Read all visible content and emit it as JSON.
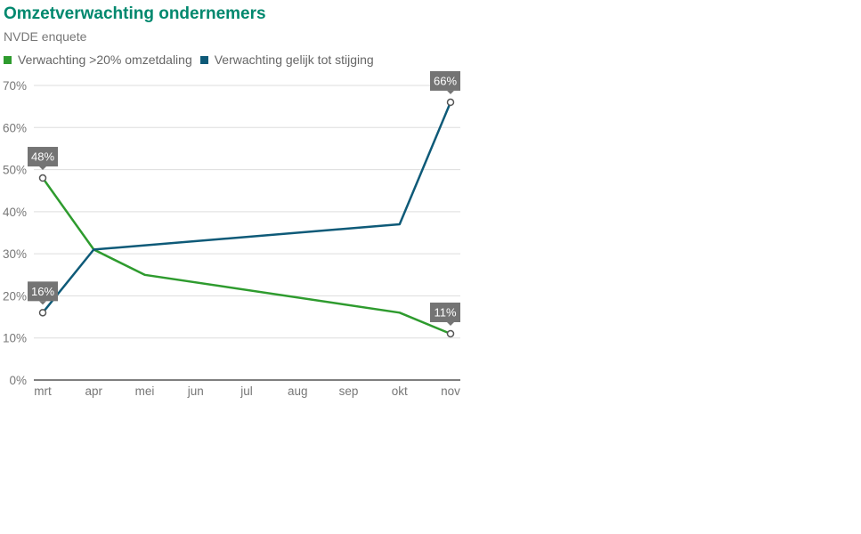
{
  "chart_data": {
    "type": "line",
    "title": "Omzetverwachting ondernemers",
    "subtitle": "NVDE enquete",
    "categories": [
      "mrt",
      "apr",
      "mei",
      "jun",
      "jul",
      "aug",
      "sep",
      "okt",
      "nov"
    ],
    "series": [
      {
        "name": "Verwachting >20% omzetdaling",
        "color": "#2e9b2e",
        "values": [
          48,
          31,
          25,
          null,
          null,
          null,
          null,
          16,
          11
        ],
        "labels": [
          {
            "index": 0,
            "text": "48%"
          },
          {
            "index": 8,
            "text": "11%"
          }
        ]
      },
      {
        "name": "Verwachting gelijk tot stijging",
        "color": "#0e5a78",
        "values": [
          16,
          31,
          null,
          null,
          null,
          null,
          null,
          37,
          66
        ],
        "labels": [
          {
            "index": 0,
            "text": "16%"
          },
          {
            "index": 8,
            "text": "66%"
          }
        ]
      }
    ],
    "ylim": [
      0,
      70
    ],
    "yticks": [
      0,
      10,
      20,
      30,
      40,
      50,
      60,
      70
    ],
    "ytick_labels": [
      "0%",
      "10%",
      "20%",
      "30%",
      "40%",
      "50%",
      "60%",
      "70%"
    ],
    "grid": true,
    "legend_position": "top-left",
    "title_color": "#00886e"
  }
}
